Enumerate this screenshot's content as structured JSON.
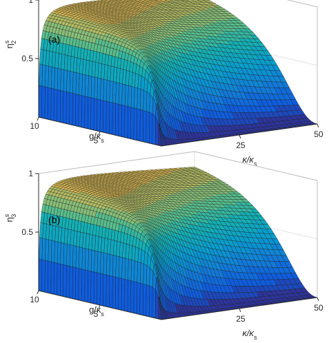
{
  "chart_data": [
    {
      "type": "surface",
      "panel_label": "(a)",
      "zlabel": {
        "base": "η",
        "sup": "s",
        "sub": "2"
      },
      "xlabel": {
        "base": "κ/κ",
        "sub": "s"
      },
      "ylabel": {
        "base": "g/κ",
        "sub": "s"
      },
      "x_range": [
        0,
        50
      ],
      "x_ticks": [
        25,
        50
      ],
      "x_tick_labels": [
        "25",
        "50"
      ],
      "y_range": [
        0,
        10
      ],
      "y_ticks": [
        5,
        10
      ],
      "y_tick_labels": [
        "5",
        "10"
      ],
      "z_range": [
        0,
        1
      ],
      "z_ticks": [
        0.5,
        1
      ],
      "z_tick_labels": [
        "0.5",
        "1"
      ],
      "grid": true,
      "colormap": "parula",
      "surface": {
        "description_values": "efficiency approaches 1 at large κ/κs, falls toward 0 as κ/κs → 0",
        "corner_values": {
          "x0_y0": 0.02,
          "x0_y10": 0.05,
          "x50_y0": 0.1,
          "x50_y10": 0.95,
          "x25_y5": 0.85
        }
      }
    },
    {
      "type": "surface",
      "panel_label": "(b)",
      "zlabel": {
        "base": "η",
        "sup": "s",
        "sub": "3"
      },
      "xlabel": {
        "base": "κ/κ",
        "sub": "s"
      },
      "ylabel": {
        "base": "g/κ",
        "sub": "s"
      },
      "x_range": [
        0,
        50
      ],
      "x_ticks": [
        25,
        50
      ],
      "x_tick_labels": [
        "25",
        "50"
      ],
      "y_range": [
        0,
        10
      ],
      "y_ticks": [
        5,
        10
      ],
      "y_tick_labels": [
        "5",
        "10"
      ],
      "z_range": [
        0,
        1
      ],
      "z_ticks": [
        0.5,
        1
      ],
      "z_tick_labels": [
        "0.5",
        "1"
      ],
      "grid": true,
      "colormap": "parula",
      "surface": {
        "description_values": "efficiency approaches 1 at large κ/κs, falls toward 0 as κ/κs → 0",
        "corner_values": {
          "x0_y0": 0.02,
          "x0_y10": 0.05,
          "x50_y0": 0.1,
          "x50_y10": 0.95,
          "x25_y5": 0.85
        }
      }
    }
  ]
}
